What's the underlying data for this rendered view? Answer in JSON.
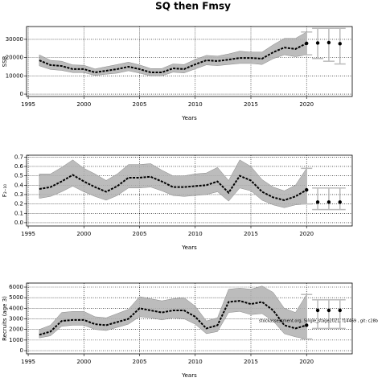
{
  "title": "SQ then Fmsy",
  "chart_data": [
    {
      "type": "band-line",
      "ylabel": "SSB",
      "xlabel": "Years",
      "xlim": [
        1994.85,
        2024.1
      ],
      "xticks": [
        1995,
        2000,
        2005,
        2010,
        2015,
        2020
      ],
      "ylim": [
        -1300,
        37000
      ],
      "yticks": [
        0,
        10000,
        20000,
        30000
      ],
      "grid": true,
      "color": "#000000",
      "band_color": "#b0b0b0",
      "bar_color": "#bbbbbb",
      "x": [
        1996,
        1997,
        1998,
        1999,
        2000,
        2001,
        2002,
        2003,
        2004,
        2005,
        2006,
        2007,
        2008,
        2009,
        2010,
        2011,
        2012,
        2013,
        2014,
        2015,
        2016,
        2017,
        2018,
        2019,
        2020
      ],
      "values": [
        18500,
        15900,
        15400,
        13700,
        13700,
        11900,
        12800,
        13700,
        15000,
        13700,
        11900,
        11900,
        14100,
        13700,
        16300,
        18500,
        18100,
        18900,
        19800,
        19800,
        19400,
        22900,
        25500,
        24700,
        27800
      ],
      "band_high": [
        21500,
        18500,
        18000,
        16000,
        15800,
        13800,
        15000,
        16200,
        17500,
        16000,
        14000,
        14000,
        16500,
        16200,
        19000,
        21200,
        20800,
        22000,
        23500,
        23000,
        23000,
        27000,
        30500,
        30500,
        34000
      ],
      "band_low": [
        15500,
        13500,
        13000,
        11800,
        11800,
        10200,
        10900,
        11500,
        12800,
        11500,
        10000,
        10000,
        12000,
        11600,
        13800,
        16000,
        15600,
        16200,
        16800,
        16800,
        16200,
        19400,
        21500,
        20500,
        21500
      ],
      "forecast_x": [
        2020,
        2021,
        2022,
        2023
      ],
      "forecast_values": [
        27800,
        28000,
        28200,
        27600
      ],
      "forecast_low": [
        21500,
        19500,
        18000,
        16500
      ],
      "forecast_high": [
        34000,
        36000,
        36000,
        36000
      ]
    },
    {
      "type": "band-line",
      "ylabel": "F₂₋₁₀",
      "xlabel": "Years",
      "xlim": [
        1994.85,
        2024.1
      ],
      "xticks": [
        1995,
        2000,
        2005,
        2010,
        2015,
        2020
      ],
      "ylim": [
        -0.035,
        0.72
      ],
      "yticks": [
        {
          "value": 0,
          "label": "0.0"
        },
        0.1,
        0.2,
        0.3,
        0.4,
        0.5,
        0.6,
        0.7
      ],
      "grid": true,
      "color": "#000000",
      "band_color": "#b0b0b0",
      "bar_color": "#bbbbbb",
      "x": [
        1996,
        1997,
        1998,
        1999,
        2000,
        2001,
        2002,
        2003,
        2004,
        2005,
        2006,
        2007,
        2008,
        2009,
        2010,
        2011,
        2012,
        2013,
        2014,
        2015,
        2016,
        2017,
        2018,
        2019,
        2020
      ],
      "values": [
        0.36,
        0.38,
        0.44,
        0.51,
        0.44,
        0.38,
        0.33,
        0.39,
        0.48,
        0.48,
        0.49,
        0.44,
        0.38,
        0.38,
        0.39,
        0.4,
        0.44,
        0.32,
        0.5,
        0.45,
        0.33,
        0.27,
        0.24,
        0.28,
        0.35
      ],
      "band_high": [
        0.52,
        0.52,
        0.59,
        0.67,
        0.58,
        0.52,
        0.45,
        0.52,
        0.62,
        0.62,
        0.63,
        0.56,
        0.5,
        0.5,
        0.52,
        0.53,
        0.59,
        0.45,
        0.67,
        0.6,
        0.46,
        0.38,
        0.34,
        0.4,
        0.58
      ],
      "band_low": [
        0.26,
        0.28,
        0.33,
        0.39,
        0.33,
        0.28,
        0.24,
        0.29,
        0.37,
        0.37,
        0.38,
        0.34,
        0.29,
        0.28,
        0.29,
        0.3,
        0.33,
        0.23,
        0.37,
        0.34,
        0.24,
        0.19,
        0.16,
        0.19,
        0.2
      ],
      "forecast_x": [
        2020,
        2021,
        2022,
        2023
      ],
      "forecast_values": [
        0.35,
        0.22,
        0.22,
        0.22
      ],
      "forecast_low": [
        0.2,
        0.14,
        0.14,
        0.14
      ],
      "forecast_high": [
        0.58,
        0.37,
        0.37,
        0.37
      ]
    },
    {
      "type": "band-line",
      "ylabel": "Recruits (age 3)",
      "xlabel": "Years",
      "annotation": "stockassessment.org, Single_stage2021, f14469 , git: c28b",
      "xlim": [
        1994.85,
        2024.1
      ],
      "xticks": [
        1995,
        2000,
        2005,
        2010,
        2015,
        2020
      ],
      "ylim": [
        -300,
        6380
      ],
      "yticks": [
        0,
        1000,
        2000,
        3000,
        4000,
        5000,
        6000
      ],
      "grid": true,
      "color": "#000000",
      "band_color": "#b0b0b0",
      "bar_color": "#bbbbbb",
      "x": [
        1996,
        1997,
        1998,
        1999,
        2000,
        2001,
        2002,
        2003,
        2004,
        2005,
        2006,
        2007,
        2008,
        2009,
        2010,
        2011,
        2012,
        2013,
        2014,
        2015,
        2016,
        2017,
        2018,
        2019,
        2020
      ],
      "values": [
        1500,
        1800,
        2800,
        2900,
        2900,
        2500,
        2400,
        2700,
        3000,
        4000,
        3800,
        3600,
        3800,
        3800,
        3200,
        2100,
        2400,
        4600,
        4700,
        4400,
        4600,
        3800,
        2400,
        2100,
        2400
      ],
      "band_high": [
        2000,
        2400,
        3600,
        3700,
        3700,
        3200,
        3100,
        3500,
        3900,
        5100,
        4900,
        4700,
        4900,
        5000,
        4200,
        2800,
        3100,
        5800,
        5900,
        5800,
        6100,
        5500,
        4000,
        3600,
        5300
      ],
      "band_low": [
        1200,
        1400,
        2300,
        2400,
        2400,
        2000,
        1900,
        2200,
        2500,
        3200,
        3100,
        2900,
        3100,
        3000,
        2500,
        1600,
        1800,
        3600,
        3700,
        3400,
        3500,
        2800,
        1600,
        1300,
        1100
      ],
      "forecast_x": [
        2020,
        2021,
        2022,
        2023
      ],
      "forecast_values": [
        2400,
        3800,
        3800,
        3800
      ],
      "forecast_low": [
        1100,
        2100,
        2100,
        2100
      ],
      "forecast_high": [
        5300,
        4800,
        4800,
        4800
      ]
    }
  ]
}
